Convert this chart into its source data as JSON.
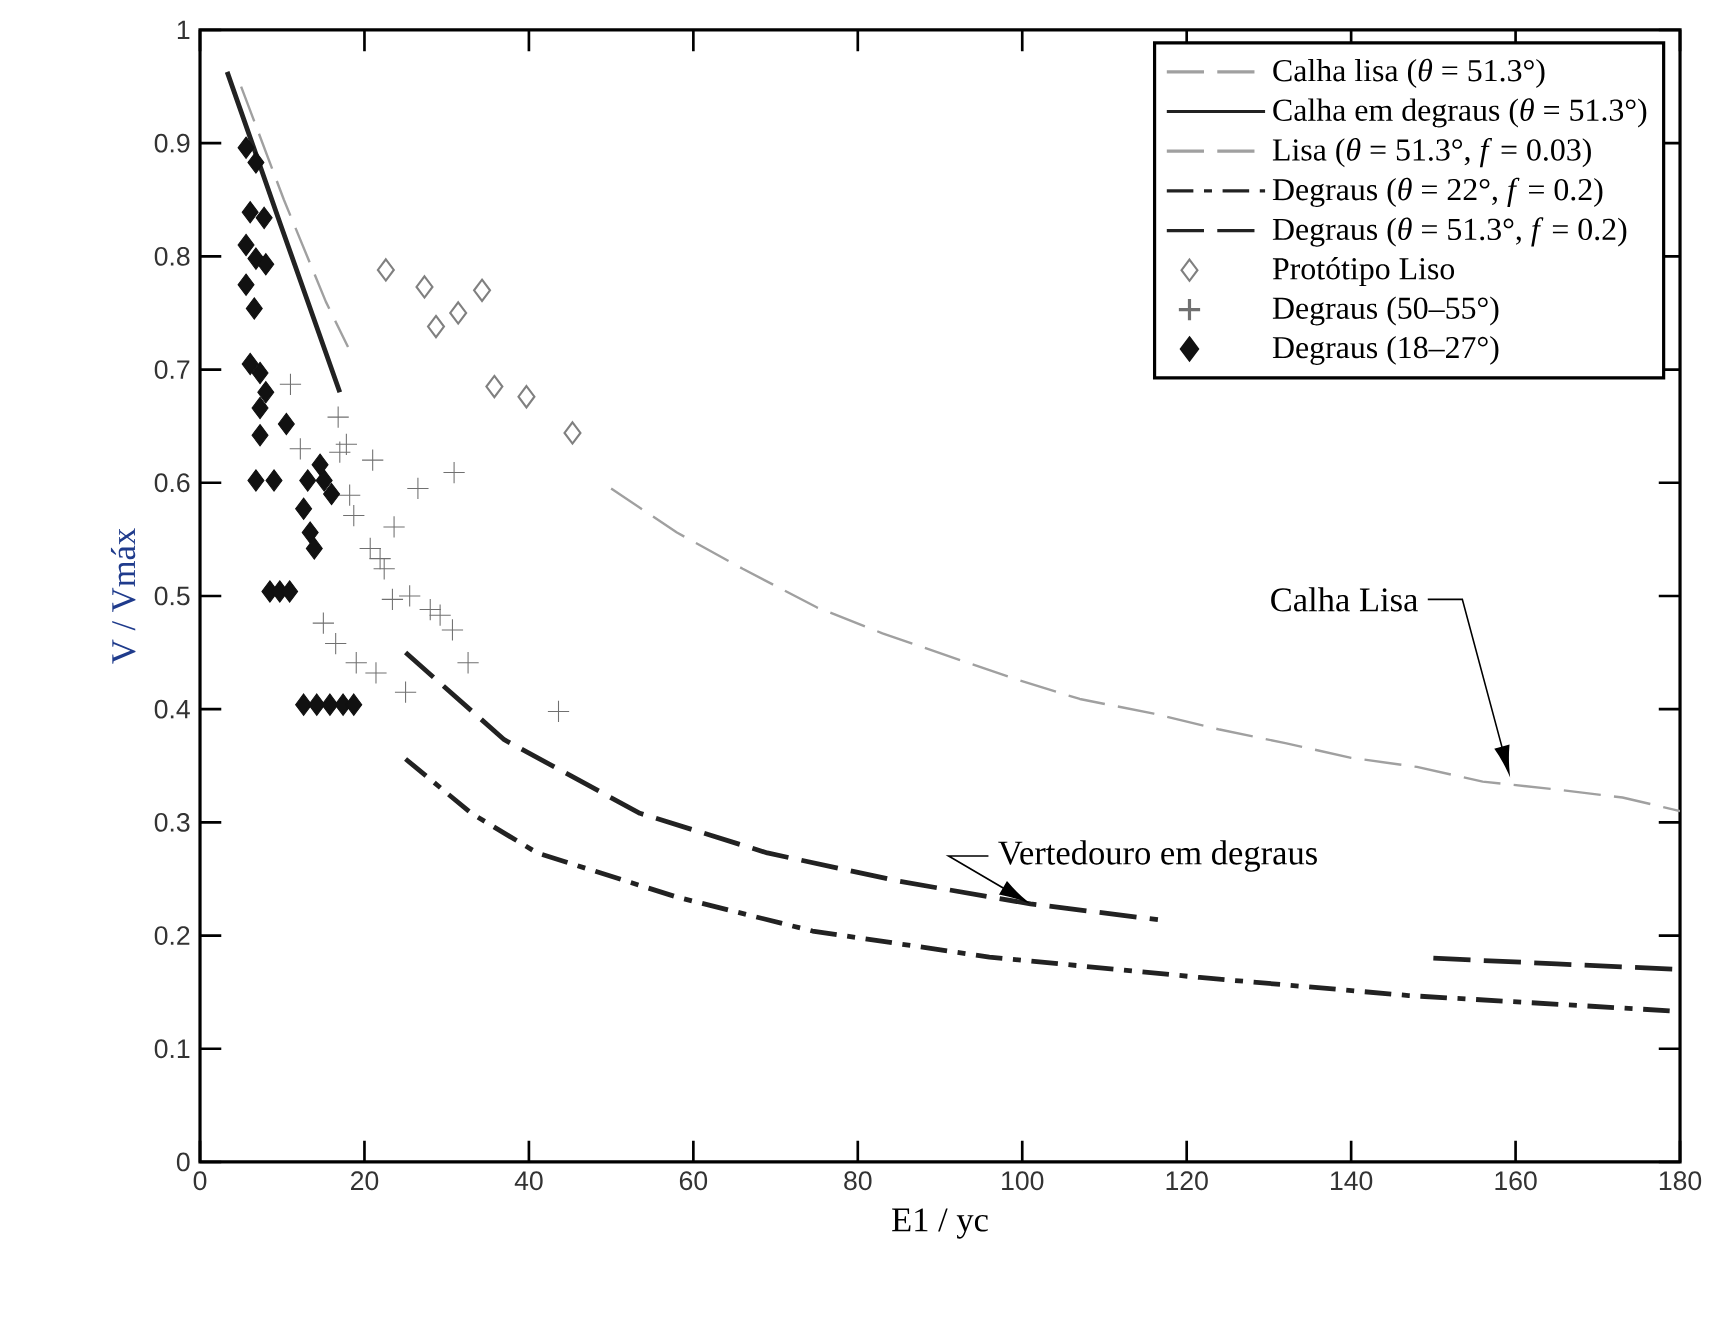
{
  "chart_data": {
    "type": "line",
    "xlabel": "E1 / yc",
    "ylabel": "V / Vmáx",
    "xlim": [
      0,
      180
    ],
    "ylim": [
      0,
      1
    ],
    "xticks": [
      0,
      20,
      40,
      60,
      80,
      100,
      120,
      140,
      160,
      180
    ],
    "yticks": [
      0,
      0.1,
      0.2,
      0.3,
      0.4,
      0.5,
      0.6,
      0.7,
      0.8,
      0.9,
      1
    ],
    "legend": "top right",
    "series": [
      {
        "name": "Calha lisa  (*θ* = 51.3°)",
        "color": "#a0a0a0",
        "line_style": "dashed",
        "marker": "none",
        "x": [
          5,
          10.2,
          15.3,
          18
        ],
        "values": [
          0.95,
          0.85,
          0.76,
          0.72
        ]
      },
      {
        "name": "Calha em degraus  (*θ* = 51.3°)",
        "color": "#222222",
        "line_style": "solid",
        "marker": "none",
        "x": [
          3.3,
          9.8,
          17
        ],
        "values": [
          0.963,
          0.828,
          0.68
        ]
      },
      {
        "name": "Lisa  (*θ* = 51.3°, *f* = 0.03)",
        "color": "#a0a0a0",
        "line_style": "dashed",
        "marker": "none",
        "x": [
          50,
          58,
          66,
          75,
          83,
          99,
          107,
          116,
          124,
          132,
          140,
          148,
          156,
          165,
          173,
          180
        ],
        "values": [
          0.595,
          0.556,
          0.524,
          0.49,
          0.467,
          0.427,
          0.409,
          0.396,
          0.382,
          0.37,
          0.357,
          0.349,
          0.336,
          0.329,
          0.322,
          0.31
        ]
      },
      {
        "name": "Degraus (*θ* = 22°, *f* = 0.2)",
        "color": "#222222",
        "line_style": "dashdot",
        "marker": "none",
        "x": [
          25,
          33,
          41,
          58,
          74.5,
          96,
          121.6,
          147,
          180
        ],
        "values": [
          0.356,
          0.308,
          0.273,
          0.234,
          0.204,
          0.181,
          0.163,
          0.147,
          0.133
        ]
      },
      {
        "name": "Degraus (*θ* = 51.3°, *f* = 0.2)",
        "color": "#222222",
        "line_style": "dashed",
        "marker": "none",
        "x": [
          25,
          37,
          53.5,
          69,
          85,
          101,
          116.5,
          133,
          150,
          165,
          180
        ],
        "values": [
          0.45,
          0.373,
          0.308,
          0.273,
          0.248,
          0.228,
          0.214,
          null,
          0.18,
          0.175,
          0.17
        ]
      },
      {
        "name": "Protótipo Liso",
        "type": "scatter",
        "color": "#808080",
        "marker": "diamond_open",
        "x": [
          22.6,
          27.3,
          28.7,
          31.4,
          34.3,
          35.8,
          39.7,
          45.3
        ],
        "values": [
          0.788,
          0.773,
          0.738,
          0.75,
          0.77,
          0.685,
          0.676,
          0.644
        ]
      },
      {
        "name": "Degraus  (50–55°)",
        "type": "scatter",
        "color": "#707070",
        "marker": "cross",
        "x": [
          11,
          16.8,
          17.8,
          12.2,
          17,
          21,
          30.9,
          26.5,
          18.2,
          18.7,
          23.6,
          20.7,
          21.9,
          22.4,
          23.4,
          25.5,
          28,
          29.2,
          30.7,
          32.6,
          15,
          16.5,
          19,
          21.4,
          25,
          43.6
        ],
        "values": [
          0.687,
          0.658,
          0.634,
          0.63,
          0.627,
          0.62,
          0.609,
          0.595,
          0.589,
          0.571,
          0.561,
          0.542,
          0.533,
          0.524,
          0.497,
          0.5,
          0.488,
          0.483,
          0.47,
          0.441,
          0.476,
          0.458,
          0.441,
          0.432,
          0.415,
          0.398
        ]
      },
      {
        "name": "Degraus  (18–27°)",
        "type": "scatter",
        "color": "#111111",
        "marker": "diamond",
        "x": [
          5.6,
          6.8,
          6.1,
          7.8,
          5.6,
          6.8,
          8,
          5.6,
          6.6,
          6.1,
          7.3,
          8,
          7.3,
          10.5,
          7.3,
          6.8,
          9,
          13.1,
          15.1,
          16,
          14.6,
          12.6,
          13.4,
          13.9,
          8.5,
          9.7,
          10.9,
          12.6,
          14.2,
          15.8,
          17.4,
          18.7
        ],
        "values": [
          0.896,
          0.883,
          0.839,
          0.834,
          0.81,
          0.798,
          0.793,
          0.775,
          0.754,
          0.705,
          0.697,
          0.68,
          0.666,
          0.652,
          0.642,
          0.602,
          0.602,
          0.602,
          0.602,
          0.59,
          0.616,
          0.577,
          0.556,
          0.542,
          0.504,
          0.504,
          0.504,
          0.404,
          0.404,
          0.404,
          0.404,
          0.404
        ]
      }
    ],
    "annotations": [
      "Calha Lisa",
      {
        "text": "Vertedouro em degraus",
        "x": 101,
        "y": 0.228
      }
    ]
  }
}
